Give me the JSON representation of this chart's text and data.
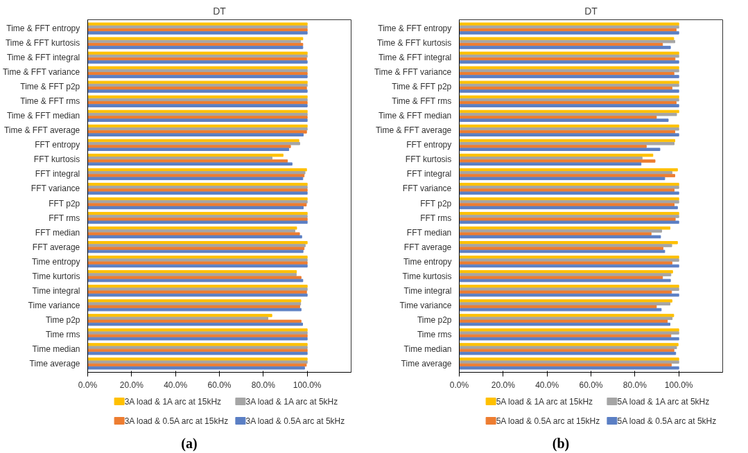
{
  "chart_data": [
    {
      "type": "bar",
      "orientation": "horizontal",
      "title": "DT",
      "annotations": [
        "(a)"
      ],
      "legend": "bottom",
      "grid": false,
      "categories": [
        "Time & FFT entropy",
        "Time & FFT kurtosis",
        "Time & FFT integral",
        "Time & FFT variance",
        "Time & FFT p2p",
        "Time & FFT rms",
        "Time & FFT median",
        "Time & FFT average",
        "FFT entropy",
        "FFT kurtosis",
        "FFT integral",
        "FFT variance",
        "FFT p2p",
        "FFT rms",
        "FFT median",
        "FFT average",
        "Time entropy",
        "Time kurtoris",
        "Time integral",
        "Time variance",
        "Time p2p",
        "Time rms",
        "Time median",
        "Time average"
      ],
      "xlim": [
        0,
        120
      ],
      "xticks": [
        {
          "value": 0,
          "label": "0.0%"
        },
        {
          "value": 20,
          "label": "20.0%"
        },
        {
          "value": 40,
          "label": "40.0%"
        },
        {
          "value": 60,
          "label": "60.0%"
        },
        {
          "value": 80,
          "label": "80.0%"
        },
        {
          "value": 100,
          "label": "100.0%"
        }
      ],
      "series": [
        {
          "name": "3A load & 1A arc at 15kHz",
          "color": "#ffc000",
          "values": [
            100,
            98.0,
            100,
            100,
            100,
            100,
            100,
            100,
            96.2,
            89.0,
            99.7,
            100,
            100,
            100,
            95.2,
            100,
            100,
            95.1,
            100,
            97.1,
            83.9,
            100,
            100,
            100
          ]
        },
        {
          "name": "3A load & 1A arc at 5kHz",
          "color": "#a5a5a5",
          "values": [
            100,
            97.0,
            100,
            100,
            100,
            100,
            100,
            100,
            96.6,
            84.0,
            99.0,
            100,
            100,
            100,
            94.4,
            99.1,
            100,
            95.0,
            100,
            97.0,
            82.1,
            100,
            100,
            100
          ]
        },
        {
          "name": "3A load & 0.5A arc at 15kHz",
          "color": "#ed7d31",
          "values": [
            100,
            98.0,
            99.7,
            100,
            99.7,
            100,
            100,
            99.7,
            92.4,
            91.0,
            98.6,
            100,
            99.6,
            100,
            96.5,
            98.6,
            100,
            97.2,
            99.7,
            96.6,
            97.2,
            100,
            100,
            99.6
          ]
        },
        {
          "name": "3A load & 0.5A arc at 5kHz",
          "color": "#5b7fc4",
          "values": [
            100,
            98.0,
            100,
            100,
            100,
            100,
            100,
            98.2,
            91.6,
            93.1,
            98.0,
            100,
            98.2,
            100,
            97.5,
            98.1,
            100,
            98.0,
            100,
            97.2,
            97.9,
            100,
            100,
            98.8
          ]
        }
      ]
    },
    {
      "type": "bar",
      "orientation": "horizontal",
      "title": "DT",
      "annotations": [
        "(b)"
      ],
      "legend": "bottom",
      "grid": false,
      "categories": [
        "Time & FFT entropy",
        "Time & FFT kurtosis",
        "Time & FFT integral",
        "Time & FFT variance",
        "Time & FFT p2p",
        "Time & FFT rms",
        "Time & FFT median",
        "Time & FFT average",
        "FFT entropy",
        "FFT kurtosis",
        "FFT integral",
        "FFT variance",
        "FFT p2p",
        "FFT rms",
        "FFT median",
        "FFT average",
        "Time entropy",
        "Time kurtosis",
        "Time integral",
        "Time variance",
        "Time p2p",
        "Time rms",
        "Time median",
        "Time average"
      ],
      "xlim": [
        0,
        120
      ],
      "xticks": [
        {
          "value": 0,
          "label": "0.0%"
        },
        {
          "value": 20,
          "label": "20.0%"
        },
        {
          "value": 40,
          "label": "40.0%"
        },
        {
          "value": 60,
          "label": "60.0%"
        },
        {
          "value": 80,
          "label": "80.0%"
        },
        {
          "value": 100,
          "label": "100.0%"
        }
      ],
      "series": [
        {
          "name": "5A load & 1A arc at 15kHz",
          "color": "#ffc000",
          "values": [
            100,
            97.7,
            100,
            100,
            100,
            100,
            100,
            100,
            98.2,
            88.2,
            99.4,
            100,
            100,
            100,
            96.0,
            99.4,
            100,
            97.2,
            100,
            96.9,
            97.7,
            100,
            99.7,
            100
          ]
        },
        {
          "name": "5A load & 1A arc at 5kHz",
          "color": "#a5a5a5",
          "values": [
            100,
            98.2,
            100,
            100,
            100,
            100,
            99.0,
            100,
            97.9,
            83.3,
            96.9,
            100,
            100,
            100,
            92.2,
            96.8,
            100,
            96.4,
            100,
            96.0,
            97.0,
            100,
            99.0,
            100
          ]
        },
        {
          "name": "5A load & 0.5A arc at 15kHz",
          "color": "#ed7d31",
          "values": [
            98.8,
            92.6,
            98.3,
            97.8,
            96.9,
            98.8,
            89.8,
            98.2,
            85.2,
            89.2,
            98.2,
            97.9,
            97.9,
            98.4,
            87.4,
            92.8,
            96.9,
            92.6,
            96.7,
            89.8,
            94.8,
            96.4,
            97.8,
            96.6
          ]
        },
        {
          "name": "5A load & 0.5A arc at 5kHz",
          "color": "#5b7fc4",
          "values": [
            100,
            96.2,
            100,
            100,
            100,
            100,
            95.2,
            100,
            91.4,
            82.8,
            93.6,
            100,
            99.4,
            100,
            91.7,
            93.6,
            100,
            96.2,
            100,
            92.0,
            96.0,
            100,
            98.6,
            100
          ]
        }
      ]
    }
  ]
}
